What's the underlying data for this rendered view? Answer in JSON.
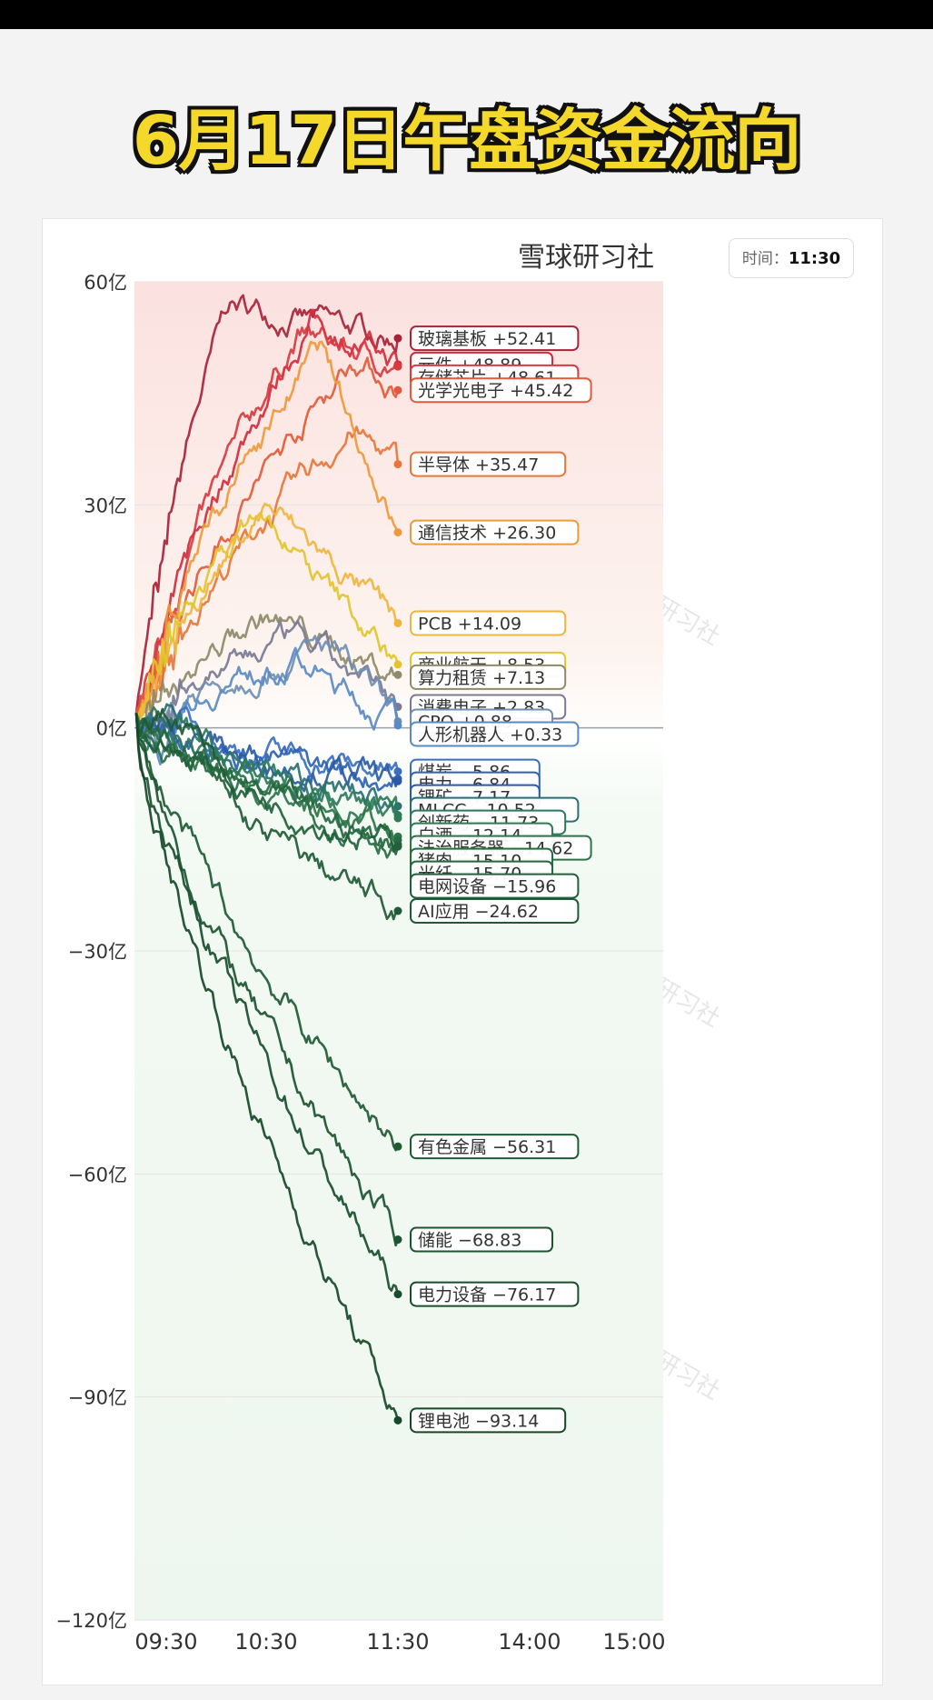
{
  "title": "6月17日午盘资金流向",
  "brand": "雪球研习社",
  "time_label": "时间：",
  "time_value": "11:30",
  "watermark": "雪球研习社",
  "chart_data": {
    "type": "line",
    "x_ticks": [
      "09:30",
      "10:30",
      "11:30",
      "14:00",
      "15:00"
    ],
    "y_ticks": [
      "60亿",
      "30亿",
      "0亿",
      "−30亿",
      "−60亿",
      "−90亿",
      "−120亿"
    ],
    "ylim": [
      -120,
      60
    ],
    "grid": true,
    "series": [
      {
        "name": "玻璃基板",
        "value": "+52.41",
        "end": 52.41,
        "peak": 57,
        "color": "#a8233a"
      },
      {
        "name": "元件",
        "value": "+48.89",
        "end": 48.89,
        "peak": 55,
        "color": "#d12d3b"
      },
      {
        "name": "存储芯片",
        "value": "+48.61",
        "end": 48.61,
        "peak": 53,
        "color": "#d83a3f"
      },
      {
        "name": "光学光电子",
        "value": "+45.42",
        "end": 45.42,
        "peak": 50,
        "color": "#e35a3a"
      },
      {
        "name": "半导体",
        "value": "+35.47",
        "end": 35.47,
        "peak": 40,
        "color": "#e8763b"
      },
      {
        "name": "通信技术",
        "value": "+26.30",
        "end": 26.3,
        "peak": 51,
        "color": "#ee9a3a"
      },
      {
        "name": "PCB",
        "value": "+14.09",
        "end": 14.09,
        "peak": 30,
        "color": "#f0b53e"
      },
      {
        "name": "商业航天",
        "value": "+8.53",
        "end": 8.53,
        "peak": 29,
        "color": "#e2c52e"
      },
      {
        "name": "算力租赁",
        "value": "+7.13",
        "end": 7.13,
        "peak": 15,
        "color": "#8f8a6a"
      },
      {
        "name": "消费电子",
        "value": "+2.83",
        "end": 2.83,
        "peak": 12,
        "color": "#7a7a95"
      },
      {
        "name": "CPO",
        "value": "+0.88",
        "end": 0.88,
        "peak": 11,
        "color": "#6f8fb3"
      },
      {
        "name": "人形机器人",
        "value": "+0.33",
        "end": 0.33,
        "peak": 9,
        "color": "#5a8ac4"
      },
      {
        "name": "煤炭",
        "value": "−5.86",
        "end": -5.86,
        "peak": 3,
        "color": "#3a6fc0"
      },
      {
        "name": "电力",
        "value": "−6.84",
        "end": -6.84,
        "peak": 2,
        "color": "#2f62b3"
      },
      {
        "name": "锂矿",
        "value": "−7.17",
        "end": -7.17,
        "peak": 2,
        "color": "#2a5aa6"
      },
      {
        "name": "MLCC",
        "value": "−10.52",
        "end": -10.52,
        "peak": 4,
        "color": "#2a6f74"
      },
      {
        "name": "创新药",
        "value": "−11.73",
        "end": -11.73,
        "peak": 3,
        "color": "#2b7a5c"
      },
      {
        "name": "白酒",
        "value": "−12.14",
        "end": -12.14,
        "peak": 2,
        "color": "#2d7b52"
      },
      {
        "name": "法治服务器",
        "value": "−14.62",
        "end": -14.62,
        "peak": 2,
        "color": "#2c7449"
      },
      {
        "name": "猪肉",
        "value": "−15.10",
        "end": -15.1,
        "peak": 1,
        "color": "#276d43"
      },
      {
        "name": "光纤",
        "value": "−15.70",
        "end": -15.7,
        "peak": 1,
        "color": "#24673f"
      },
      {
        "name": "电网设备",
        "value": "−15.96",
        "end": -15.96,
        "peak": 1,
        "color": "#21603a"
      },
      {
        "name": "AI应用",
        "value": "−24.62",
        "end": -24.62,
        "peak": 9,
        "color": "#1f5a36"
      },
      {
        "name": "有色金属",
        "value": "−56.31",
        "end": -56.31,
        "peak": 2,
        "color": "#1e5a34"
      },
      {
        "name": "储能",
        "value": "−68.83",
        "end": -68.83,
        "peak": 1,
        "color": "#1b5430"
      },
      {
        "name": "电力设备",
        "value": "−76.17",
        "end": -76.17,
        "peak": 1,
        "color": "#184e2c"
      },
      {
        "name": "锂电池",
        "value": "−93.14",
        "end": -93.14,
        "peak": 1,
        "color": "#164828"
      }
    ]
  }
}
